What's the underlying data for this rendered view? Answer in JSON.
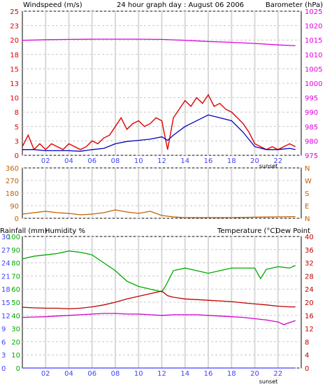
{
  "colors": {
    "wind": "#e00000",
    "gust": "#e00000",
    "avg": "#0000c0",
    "barometer": "#e000e0",
    "direction": "#c06000",
    "rain": "#4040ff",
    "humidity": "#00aa00",
    "temperature": "#c00000",
    "dewpoint": "#d000d0",
    "grid_major": "#d8d8d8",
    "axis_left": "#e00000",
    "axis_green": "#00aa00",
    "axis_right": "#e000e0",
    "axis_blue": "#4040ff",
    "axis_brown": "#c06000"
  },
  "header": {
    "title": "24 hour graph day : August 06 2006",
    "left_label": "Windspeed (m/s)",
    "right_label": "Barometer (hPa)"
  },
  "chart_data": [
    {
      "type": "line",
      "id": "wind-baro",
      "title": "24 hour graph day : August 06 2006",
      "ylabel": "Windspeed (m/s)",
      "y2label": "Barometer (hPa)",
      "xlim": [
        0,
        24
      ],
      "x_ticks": [
        "02",
        "04",
        "06",
        "08",
        "10",
        "12",
        "14",
        "16",
        "18",
        "20",
        "22"
      ],
      "x_tick_values": [
        2,
        4,
        6,
        8,
        10,
        12,
        14,
        16,
        18,
        20,
        22
      ],
      "sunset_label": "sunset",
      "ylim": [
        0,
        25
      ],
      "y_ticks": [
        "0",
        "3",
        "5",
        "8",
        "10",
        "13",
        "15",
        "18",
        "20",
        "23",
        "25"
      ],
      "y_tick_values": [
        0,
        2.5,
        5,
        7.5,
        10,
        12.5,
        15,
        17.5,
        20,
        22.5,
        25
      ],
      "y2lim": [
        975,
        1025
      ],
      "y2_ticks": [
        "975",
        "980",
        "985",
        "990",
        "995",
        "1000",
        "1005",
        "1010",
        "1015",
        "1020",
        "1025"
      ],
      "series": [
        {
          "color_key": "barometer",
          "axis": "right",
          "x": [
            0,
            2,
            4,
            6,
            8,
            10,
            12,
            14,
            16,
            18,
            20,
            22,
            23.5
          ],
          "y": [
            1014.9,
            1015.1,
            1015.2,
            1015.3,
            1015.3,
            1015.3,
            1015.2,
            1014.9,
            1014.5,
            1014.2,
            1013.8,
            1013.3,
            1013.0
          ]
        },
        {
          "color_key": "gust",
          "axis": "left",
          "x": [
            0,
            0.5,
            1,
            1.5,
            2,
            2.5,
            3,
            3.5,
            4,
            4.5,
            5,
            5.5,
            6,
            6.5,
            7,
            7.5,
            8,
            8.5,
            9,
            9.5,
            10,
            10.5,
            11,
            11.5,
            12,
            12.5,
            13,
            13.5,
            14,
            14.5,
            15,
            15.5,
            16,
            16.5,
            17,
            17.5,
            18,
            18.5,
            19,
            19.5,
            20,
            20.5,
            21,
            21.5,
            22,
            22.5,
            23,
            23.5
          ],
          "y": [
            1.5,
            3.5,
            1,
            2,
            1,
            2,
            1.5,
            1,
            2,
            1.5,
            1,
            1.5,
            2.5,
            2,
            3,
            3.5,
            5,
            6.5,
            4.5,
            5.5,
            6,
            5,
            5.5,
            6.5,
            6,
            1,
            6.5,
            8,
            9.5,
            8.5,
            10,
            9,
            10.5,
            8.5,
            9,
            8,
            7.5,
            6.5,
            5.5,
            4,
            2,
            1.5,
            1,
            1.5,
            1,
            1.5,
            2,
            1.5
          ]
        },
        {
          "color_key": "avg",
          "axis": "left",
          "x": [
            0,
            1,
            2,
            3,
            4,
            5,
            6,
            7,
            8,
            9,
            10,
            11,
            12,
            12.5,
            13,
            14,
            15,
            16,
            17,
            18,
            19,
            20,
            21,
            22,
            23,
            23.5
          ],
          "y": [
            1,
            1,
            0.8,
            0.8,
            0.8,
            0.7,
            1,
            1.2,
            2,
            2.4,
            2.6,
            2.8,
            3.2,
            2.6,
            3.5,
            5,
            6,
            7,
            6.5,
            6,
            4,
            1.5,
            1,
            1,
            1.2,
            1
          ]
        }
      ]
    },
    {
      "type": "line",
      "id": "direction",
      "xlim": [
        0,
        24
      ],
      "x_ticks": [
        "02",
        "04",
        "06",
        "08",
        "10",
        "12",
        "14",
        "16",
        "18",
        "20",
        "22"
      ],
      "ylim": [
        0,
        360
      ],
      "y_ticks": [
        "0",
        "90",
        "180",
        "270",
        "360"
      ],
      "y_tick_values": [
        0,
        90,
        180,
        270,
        360
      ],
      "y2_ticks": [
        "N",
        "E",
        "S",
        "W",
        "N"
      ],
      "series": [
        {
          "color_key": "direction",
          "x": [
            0,
            1,
            2,
            3,
            4,
            5,
            6,
            7,
            8,
            9,
            10,
            11,
            12,
            13,
            14,
            16,
            18,
            20,
            22,
            23.5
          ],
          "y": [
            30,
            40,
            50,
            40,
            35,
            25,
            30,
            40,
            60,
            45,
            35,
            50,
            20,
            10,
            5,
            5,
            5,
            8,
            10,
            12
          ]
        }
      ]
    },
    {
      "type": "line",
      "id": "temp-hum",
      "ylabel": "Rainfall (mm)",
      "y1label": "Humidity %",
      "y2label": "Temperature (°C)",
      "y3label": "Dew Point",
      "xlim": [
        0,
        24
      ],
      "x_ticks": [
        "02",
        "04",
        "06",
        "08",
        "10",
        "12",
        "14",
        "16",
        "18",
        "20",
        "22"
      ],
      "sunset_label": "sunset",
      "rain_ticks": [
        "0",
        "3",
        "6",
        "9",
        "12",
        "15",
        "18",
        "21",
        "24",
        "27",
        "30"
      ],
      "humidity_ticks": [
        "0",
        "10",
        "20",
        "30",
        "40",
        "50",
        "60",
        "70",
        "80",
        "90",
        "100"
      ],
      "temp_ticks": [
        "0",
        "4",
        "8",
        "12",
        "16",
        "20",
        "24",
        "28",
        "32",
        "36",
        "40"
      ],
      "temp_lim": [
        0,
        40
      ],
      "humidity_lim": [
        0,
        100
      ],
      "series": [
        {
          "color_key": "humidity",
          "axis": "humidity",
          "x": [
            0,
            1,
            2,
            3,
            4,
            5,
            6,
            7,
            8,
            9,
            10,
            11,
            12,
            12.3,
            13,
            14,
            15,
            16,
            17,
            18,
            19,
            20,
            20.5,
            21,
            22,
            23,
            23.5
          ],
          "y": [
            83,
            85,
            86,
            87,
            89,
            88,
            86,
            80,
            74,
            66,
            62,
            60,
            58,
            62,
            74,
            76,
            74,
            72,
            74,
            76,
            76,
            76,
            68,
            75,
            77,
            76,
            78
          ]
        },
        {
          "color_key": "temperature",
          "axis": "temp",
          "x": [
            0,
            1,
            2,
            3,
            4,
            5,
            6,
            7,
            8,
            9,
            10,
            11,
            12,
            12.5,
            13,
            14,
            15,
            16,
            17,
            18,
            19,
            20,
            21,
            22,
            23,
            23.5
          ],
          "y": [
            18.5,
            18.3,
            18.2,
            18.2,
            18.0,
            18.2,
            18.6,
            19.2,
            20.0,
            21.0,
            21.8,
            22.6,
            23.4,
            22.0,
            21.5,
            21.0,
            20.8,
            20.6,
            20.4,
            20.2,
            19.8,
            19.5,
            19.2,
            18.8,
            18.6,
            18.6
          ]
        },
        {
          "color_key": "dewpoint",
          "axis": "temp",
          "x": [
            0,
            1,
            2,
            3,
            4,
            5,
            6,
            7,
            8,
            9,
            10,
            11,
            12,
            13,
            14,
            15,
            16,
            17,
            18,
            19,
            20,
            21,
            22,
            22.5,
            23,
            23.5
          ],
          "y": [
            15.4,
            15.5,
            15.6,
            15.8,
            16.0,
            16.2,
            16.4,
            16.6,
            16.6,
            16.4,
            16.4,
            16.2,
            16.0,
            16.2,
            16.2,
            16.2,
            16.0,
            15.8,
            15.6,
            15.4,
            15.0,
            14.6,
            14.0,
            13.2,
            13.8,
            14.4
          ]
        },
        {
          "color_key": "rain",
          "axis": "rain",
          "x": [
            0,
            23.5
          ],
          "y": [
            0,
            0
          ]
        }
      ]
    }
  ]
}
